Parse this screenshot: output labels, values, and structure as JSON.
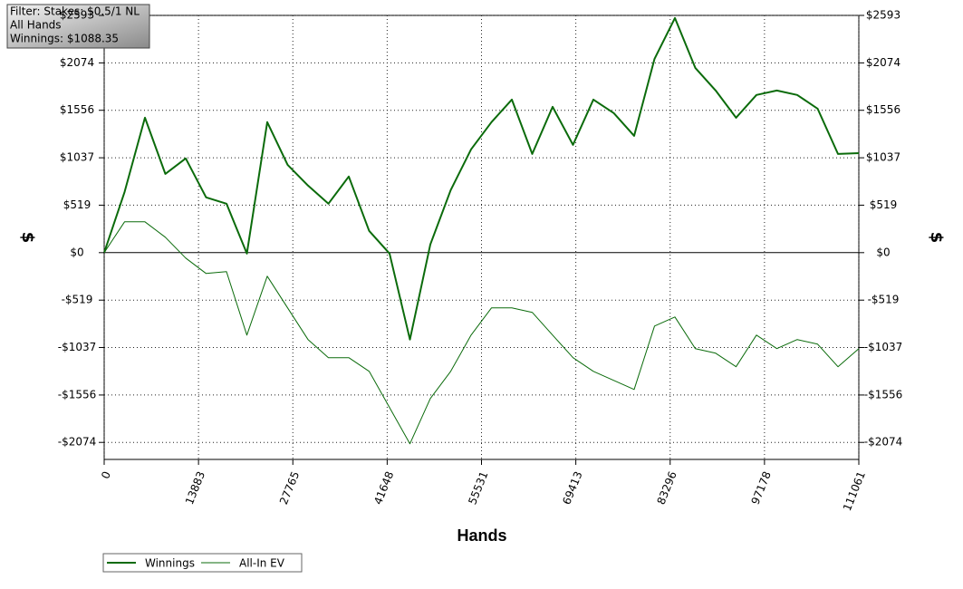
{
  "chart_data": {
    "type": "line",
    "filter_lines": [
      "Filter: Stakes: $0.5/1 NL",
      "All Hands",
      "Winnings: $1088.35"
    ],
    "xlabel": "Hands",
    "ylabel": "$",
    "y2label": "$",
    "x": [
      0,
      3000,
      6000,
      9000,
      12000,
      15000,
      18000,
      21000,
      24000,
      27000,
      30000,
      33000,
      36000,
      39000,
      42000,
      45000,
      48000,
      51000,
      54000,
      57000,
      60000,
      63000,
      66000,
      69000,
      72000,
      75000,
      78000,
      81000,
      84000,
      87000,
      90000,
      93000,
      96000,
      99000,
      102000,
      105000,
      108000,
      111061
    ],
    "series": [
      {
        "name": "Winnings",
        "color": "#0b6b0b",
        "width": 2,
        "values": [
          0,
          663,
          1475,
          861,
          1030,
          604,
          535,
          -10,
          1426,
          960,
          733,
          535,
          832,
          238,
          -10,
          -950,
          89,
          683,
          1129,
          1426,
          1673,
          1079,
          1594,
          1178,
          1673,
          1525,
          1277,
          2119,
          2564,
          2020,
          1772,
          1475,
          1723,
          1772,
          1723,
          1574,
          1079,
          1088
        ]
      },
      {
        "name": "All-In EV",
        "color": "#0b6b0b",
        "width": 1,
        "values": [
          0,
          337,
          337,
          168,
          -59,
          -228,
          -208,
          -901,
          -257,
          -604,
          -950,
          -1148,
          -1148,
          -1297,
          -1693,
          -2089,
          -1594,
          -1297,
          -901,
          -604,
          -604,
          -653,
          -901,
          -1148,
          -1297,
          -1396,
          -1495,
          -802,
          -703,
          -1049,
          -1099,
          -1247,
          -901,
          -1049,
          -950,
          -1000,
          -1247,
          -1049
        ]
      }
    ],
    "xlim": [
      0,
      111061
    ],
    "xticks": [
      0,
      13883,
      27765,
      41648,
      55531,
      69413,
      83296,
      97178,
      111061
    ],
    "ylim": [
      -2260,
      2593
    ],
    "yticks": [
      {
        "value": -2074,
        "label": "-$2074"
      },
      {
        "value": -1556,
        "label": "-$1556"
      },
      {
        "value": -1037,
        "label": "-$1037"
      },
      {
        "value": -519,
        "label": "-$519"
      },
      {
        "value": 0,
        "label": "$0"
      },
      {
        "value": 519,
        "label": "$519"
      },
      {
        "value": 1037,
        "label": "$1037"
      },
      {
        "value": 1556,
        "label": "$1556"
      },
      {
        "value": 2074,
        "label": "$2074"
      },
      {
        "value": 2593,
        "label": "$2593"
      }
    ],
    "grid": true
  }
}
